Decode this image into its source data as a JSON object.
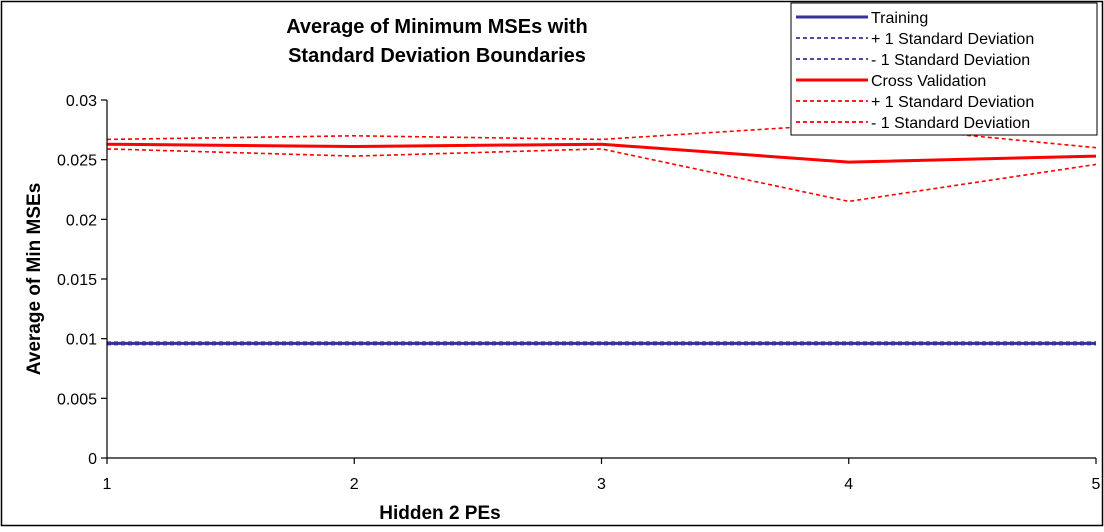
{
  "chart_data": {
    "type": "line",
    "title": "Average of Minimum MSEs with Standard Deviation Boundaries",
    "title_lines": [
      "Average of Minimum MSEs with",
      "Standard Deviation Boundaries"
    ],
    "xlabel": "Hidden 2 PEs",
    "ylabel": "Average of Min MSEs",
    "x": [
      1,
      2,
      3,
      4,
      5
    ],
    "x_tick_labels": [
      "1",
      "2",
      "3",
      "4",
      "5"
    ],
    "ylim": [
      0,
      0.03
    ],
    "y_ticks": [
      0,
      0.005,
      0.01,
      0.015,
      0.02,
      0.025,
      0.03
    ],
    "y_tick_labels": [
      "0",
      "0.005",
      "0.01",
      "0.015",
      "0.02",
      "0.025",
      "0.03"
    ],
    "grid": false,
    "legend_position": "top-right",
    "series": [
      {
        "name": "Training",
        "values": [
          0.0096,
          0.0096,
          0.0096,
          0.0096,
          0.0096
        ],
        "color": "#333399",
        "style": "solid"
      },
      {
        "name": "+ 1 Standard Deviation",
        "values": [
          0.0097,
          0.0097,
          0.0097,
          0.0097,
          0.0097
        ],
        "color": "#333399",
        "style": "dashed"
      },
      {
        "name": "- 1 Standard Deviation",
        "values": [
          0.0095,
          0.0095,
          0.0095,
          0.0095,
          0.0095
        ],
        "color": "#333399",
        "style": "dashed"
      },
      {
        "name": "Cross Validation",
        "values": [
          0.0263,
          0.0261,
          0.0263,
          0.0248,
          0.0253
        ],
        "color": "#ff0000",
        "style": "solid"
      },
      {
        "name": "+ 1 Standard Deviation",
        "values": [
          0.0267,
          0.027,
          0.0267,
          0.028,
          0.026
        ],
        "color": "#ff0000",
        "style": "dashed"
      },
      {
        "name": "- 1 Standard Deviation",
        "values": [
          0.0259,
          0.0253,
          0.0259,
          0.0215,
          0.0246
        ],
        "color": "#ff0000",
        "style": "dashed"
      }
    ]
  }
}
